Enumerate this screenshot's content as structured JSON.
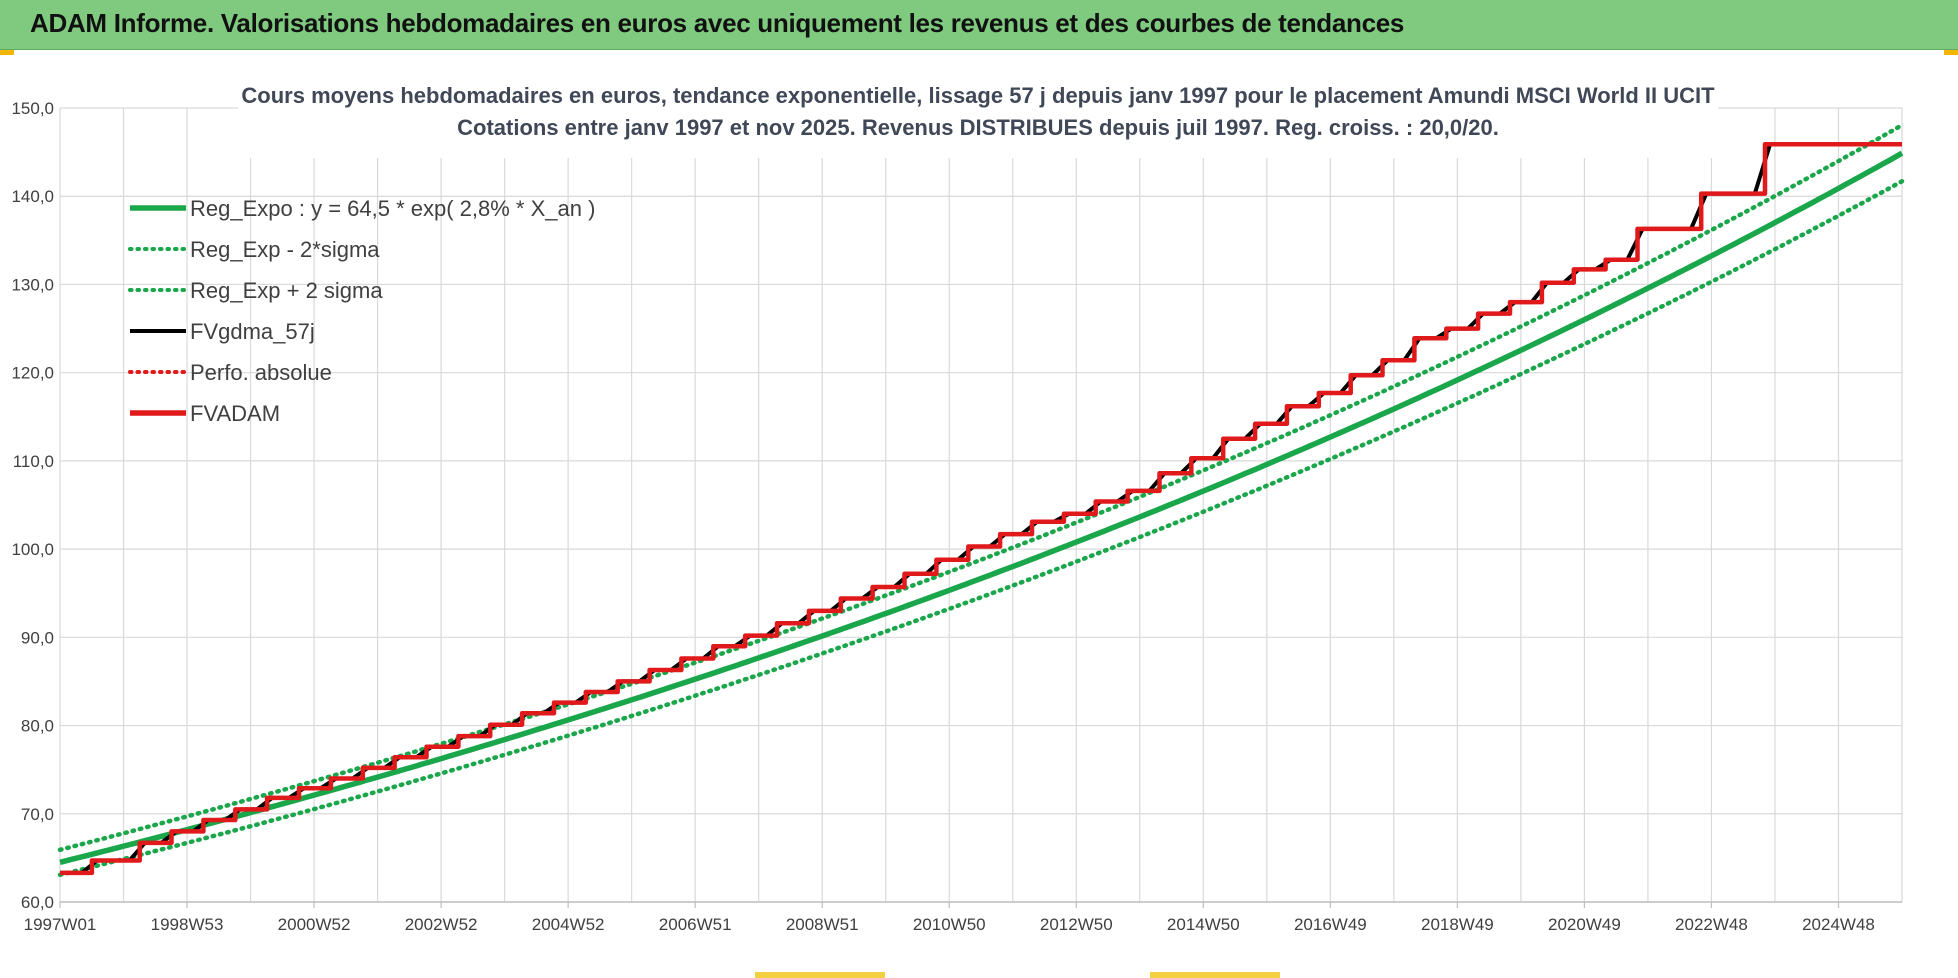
{
  "header": {
    "title": "ADAM Informe. Valorisations hebdomadaires en euros avec uniquement les revenus et des courbes de tendances"
  },
  "chart_data": {
    "type": "line",
    "title_line1": "Cours moyens hebdomadaires en euros, tendance exponentielle, lissage 57 j depuis janv 1997 pour le placement Amundi MSCI World II UCIT",
    "title_line2": "Cotations entre janv 1997 et nov 2025. Revenus DISTRIBUES depuis juil 1997. Reg. croiss. : 20,0/20.",
    "ylim": [
      60,
      150
    ],
    "y_ticks": [
      "60,0",
      "70,0",
      "80,0",
      "90,0",
      "100,0",
      "110,0",
      "120,0",
      "130,0",
      "140,0",
      "150,0"
    ],
    "x_tick_labels": [
      "1997W01",
      "1998W53",
      "2000W52",
      "2002W52",
      "2004W52",
      "2006W51",
      "2008W51",
      "2010W50",
      "2012W50",
      "2014W50",
      "2016W49",
      "2018W49",
      "2020W49",
      "2022W48",
      "2024W48"
    ],
    "xlim_years": [
      0,
      28.9
    ],
    "grid": true,
    "legend_position": "top-left",
    "regression": {
      "a": 64.5,
      "rate": 0.028
    },
    "series": [
      {
        "name": "Reg_Expo : y = 64,5 * exp( 2,8% *  X_an )",
        "color": "#1aa64a",
        "style": "solid",
        "role": "trend"
      },
      {
        "name": "Reg_Exp - 2*sigma",
        "color": "#1aa64a",
        "style": "dotted",
        "role": "lower",
        "factor": 0.978
      },
      {
        "name": "Reg_Exp + 2 sigma",
        "color": "#1aa64a",
        "style": "dotted",
        "role": "upper",
        "factor": 1.022
      },
      {
        "name": "FVgdma_57j",
        "color": "#000000",
        "style": "solid",
        "role": "smoothed"
      },
      {
        "name": "Perfo. absolue",
        "color": "#e0191b",
        "style": "dotted",
        "role": "absolute"
      },
      {
        "name": "FVADAM",
        "color": "#e0191b",
        "style": "solid",
        "role": "fvadam"
      }
    ],
    "fvadam_steps": [
      {
        "x": 0,
        "y": 63.3
      },
      {
        "x": 0.5,
        "y": 64.7
      },
      {
        "x": 1.25,
        "y": 66.7
      },
      {
        "x": 1.75,
        "y": 68.0
      },
      {
        "x": 2.25,
        "y": 69.3
      },
      {
        "x": 2.75,
        "y": 70.5
      },
      {
        "x": 3.25,
        "y": 71.8
      },
      {
        "x": 3.75,
        "y": 72.9
      },
      {
        "x": 4.25,
        "y": 74.0
      },
      {
        "x": 4.75,
        "y": 75.2
      },
      {
        "x": 5.25,
        "y": 76.4
      },
      {
        "x": 5.75,
        "y": 77.6
      },
      {
        "x": 6.25,
        "y": 78.8
      },
      {
        "x": 6.75,
        "y": 80.1
      },
      {
        "x": 7.25,
        "y": 81.4
      },
      {
        "x": 7.75,
        "y": 82.6
      },
      {
        "x": 8.25,
        "y": 83.8
      },
      {
        "x": 8.75,
        "y": 85.0
      },
      {
        "x": 9.25,
        "y": 86.3
      },
      {
        "x": 9.75,
        "y": 87.6
      },
      {
        "x": 10.25,
        "y": 89.0
      },
      {
        "x": 10.75,
        "y": 90.2
      },
      {
        "x": 11.25,
        "y": 91.6
      },
      {
        "x": 11.75,
        "y": 93.0
      },
      {
        "x": 12.25,
        "y": 94.4
      },
      {
        "x": 12.75,
        "y": 95.7
      },
      {
        "x": 13.25,
        "y": 97.2
      },
      {
        "x": 13.75,
        "y": 98.8
      },
      {
        "x": 14.25,
        "y": 100.3
      },
      {
        "x": 14.75,
        "y": 101.7
      },
      {
        "x": 15.25,
        "y": 103.1
      },
      {
        "x": 15.75,
        "y": 104.0
      },
      {
        "x": 16.25,
        "y": 105.4
      },
      {
        "x": 16.75,
        "y": 106.6
      },
      {
        "x": 17.25,
        "y": 108.6
      },
      {
        "x": 17.75,
        "y": 110.3
      },
      {
        "x": 18.25,
        "y": 112.5
      },
      {
        "x": 18.75,
        "y": 114.2
      },
      {
        "x": 19.25,
        "y": 116.2
      },
      {
        "x": 19.75,
        "y": 117.7
      },
      {
        "x": 20.25,
        "y": 119.7
      },
      {
        "x": 20.75,
        "y": 121.4
      },
      {
        "x": 21.25,
        "y": 123.9
      },
      {
        "x": 21.75,
        "y": 125.0
      },
      {
        "x": 22.25,
        "y": 126.7
      },
      {
        "x": 22.75,
        "y": 128.0
      },
      {
        "x": 23.25,
        "y": 130.2
      },
      {
        "x": 23.75,
        "y": 131.7
      },
      {
        "x": 24.25,
        "y": 132.8
      },
      {
        "x": 24.75,
        "y": 136.3
      },
      {
        "x": 25.75,
        "y": 140.3
      },
      {
        "x": 26.75,
        "y": 145.9
      },
      {
        "x": 28.9,
        "y": 145.9
      }
    ]
  }
}
